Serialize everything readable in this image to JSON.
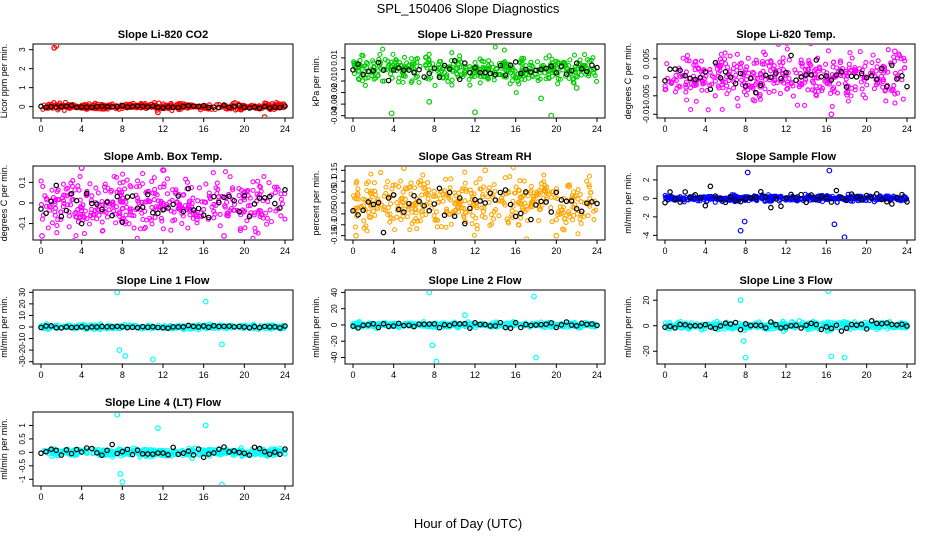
{
  "page": {
    "title": "SPL_150406  Slope Diagnostics",
    "xlabel": "Hour of Day (UTC)"
  },
  "colors": {
    "red": "#ff0000",
    "green": "#00cc00",
    "magenta": "#ff00ff",
    "orange": "#ffa500",
    "blue": "#0000ff",
    "cyan": "#00ffff",
    "black": "#000000"
  },
  "chart_data": [
    {
      "type": "scatter",
      "title": "Slope Li-820 CO2",
      "ylabel": "Licor ppm per min.",
      "xlim": [
        0,
        24
      ],
      "xticks": [
        0,
        4,
        8,
        12,
        16,
        20,
        24
      ],
      "ylim": [
        -0.6,
        3.3
      ],
      "yticks": [
        0,
        1,
        2,
        3
      ],
      "color": "red",
      "noise": 0.08,
      "outliers": [
        [
          1.3,
          3.1
        ],
        [
          1.5,
          3.2
        ],
        [
          22.0,
          -0.55
        ],
        [
          11.5,
          -0.3
        ]
      ],
      "black_sd": 0.04
    },
    {
      "type": "scatter",
      "title": "Slope Li-820 Pressure",
      "ylabel": "kPa per min.",
      "xlim": [
        0,
        24
      ],
      "xticks": [
        0,
        4,
        8,
        12,
        16,
        20,
        24
      ],
      "ylim": [
        -0.042,
        0.022
      ],
      "yticks": [
        -0.04,
        -0.03,
        -0.02,
        -0.01,
        0.0,
        0.01
      ],
      "color": "green",
      "noise": 0.006,
      "outliers": [
        [
          3.8,
          -0.038
        ],
        [
          7.5,
          -0.028
        ],
        [
          12,
          -0.037
        ],
        [
          18.5,
          -0.025
        ],
        [
          22,
          -0.016
        ],
        [
          19.5,
          -0.04
        ]
      ],
      "black_sd": 0.004
    },
    {
      "type": "scatter",
      "title": "Slope Li-820 Temp.",
      "ylabel": "degrees C per min.",
      "xlim": [
        0,
        24
      ],
      "xticks": [
        0,
        4,
        8,
        12,
        16,
        20,
        24
      ],
      "ylim": [
        -0.011,
        0.009
      ],
      "yticks": [
        -0.01,
        -0.005,
        0.0,
        0.005
      ],
      "color": "magenta",
      "noise": 0.0035,
      "outliers": [
        [
          16.5,
          -0.01
        ],
        [
          22.8,
          0.007
        ]
      ],
      "black_sd": 0.002
    },
    {
      "type": "scatter",
      "title": "Slope Amb. Box Temp.",
      "ylabel": "degrees C per min.",
      "xlim": [
        0,
        24
      ],
      "xticks": [
        0,
        4,
        8,
        12,
        16,
        20,
        24
      ],
      "ylim": [
        -0.18,
        0.18
      ],
      "yticks": [
        -0.1,
        0.0,
        0.1
      ],
      "color": "magenta",
      "noise": 0.065,
      "outliers": [
        [
          0.1,
          -0.16
        ],
        [
          4,
          0.17
        ],
        [
          12,
          0.16
        ],
        [
          18,
          -0.16
        ]
      ],
      "black_sd": 0.04
    },
    {
      "type": "scatter",
      "title": "Slope Gas Stream RH",
      "ylabel": "percent per min.",
      "xlim": [
        0,
        24
      ],
      "xticks": [
        0,
        4,
        8,
        12,
        16,
        20,
        24
      ],
      "ylim": [
        -0.17,
        0.17
      ],
      "yticks": [
        -0.15,
        -0.1,
        -0.05,
        0.0,
        0.05,
        0.1,
        0.15
      ],
      "color": "orange",
      "noise": 0.065,
      "outliers": [
        [
          0.3,
          -0.15
        ],
        [
          5,
          0.16
        ],
        [
          13,
          0.15
        ],
        [
          20,
          -0.15
        ]
      ],
      "black_sd": 0.04
    },
    {
      "type": "scatter",
      "title": "Slope Sample Flow",
      "ylabel": "ml/min per min.",
      "xlim": [
        0,
        24
      ],
      "xticks": [
        0,
        4,
        8,
        12,
        16,
        20,
        24
      ],
      "ylim": [
        -4.5,
        3.5
      ],
      "yticks": [
        -4,
        -2,
        0,
        2
      ],
      "color": "blue",
      "noise": 0.15,
      "outliers": [
        [
          7.5,
          -3.5
        ],
        [
          8.2,
          2.8
        ],
        [
          16.3,
          3.0
        ],
        [
          17.8,
          -4.2
        ],
        [
          7.9,
          -2.5
        ],
        [
          16.8,
          -2.8
        ]
      ],
      "black_sd": 0.5
    },
    {
      "type": "scatter",
      "title": "Slope Line 1 Flow",
      "ylabel": "ml/min per min.",
      "xlim": [
        0,
        24
      ],
      "xticks": [
        0,
        4,
        8,
        12,
        16,
        20,
        24
      ],
      "ylim": [
        -32,
        32
      ],
      "yticks": [
        -30,
        -20,
        -10,
        0,
        10,
        20,
        30
      ],
      "color": "cyan",
      "noise": 1.0,
      "outliers": [
        [
          7.5,
          30
        ],
        [
          7.7,
          -20
        ],
        [
          11,
          -28
        ],
        [
          16.2,
          22
        ],
        [
          8.3,
          -25
        ],
        [
          17.8,
          -15
        ]
      ],
      "black_sd": 0.5
    },
    {
      "type": "scatter",
      "title": "Slope Line 2 Flow",
      "ylabel": "ml/min per min.",
      "xlim": [
        0,
        24
      ],
      "xticks": [
        0,
        4,
        8,
        12,
        16,
        20,
        24
      ],
      "ylim": [
        -48,
        43
      ],
      "yticks": [
        -40,
        -20,
        0,
        20,
        40
      ],
      "color": "cyan",
      "noise": 1.5,
      "outliers": [
        [
          7.5,
          40
        ],
        [
          8.2,
          -45
        ],
        [
          17.8,
          35
        ],
        [
          18,
          -40
        ],
        [
          7.8,
          -25
        ],
        [
          11,
          12
        ]
      ],
      "black_sd": 2.0
    },
    {
      "type": "scatter",
      "title": "Slope Line 3 Flow",
      "ylabel": "ml/min per min.",
      "xlim": [
        0,
        24
      ],
      "xticks": [
        0,
        4,
        8,
        12,
        16,
        20,
        24
      ],
      "ylim": [
        -30,
        28
      ],
      "yticks": [
        -20,
        0,
        20
      ],
      "color": "cyan",
      "noise": 1.5,
      "outliers": [
        [
          7.5,
          20
        ],
        [
          8,
          -25
        ],
        [
          16.2,
          27
        ],
        [
          17.8,
          -25
        ],
        [
          16.5,
          -24
        ],
        [
          7.8,
          -12
        ]
      ],
      "black_sd": 2.0
    },
    {
      "type": "scatter",
      "title": "Slope Line 4 (LT) Flow",
      "ylabel": "ml/min per min.",
      "xlim": [
        0,
        24
      ],
      "xticks": [
        0,
        4,
        8,
        12,
        16,
        20,
        24
      ],
      "ylim": [
        -1.25,
        1.5
      ],
      "yticks": [
        -1.0,
        -0.5,
        0.0,
        0.5,
        1.0
      ],
      "color": "cyan",
      "noise": 0.07,
      "outliers": [
        [
          7.5,
          1.4
        ],
        [
          8,
          -1.1
        ],
        [
          16.2,
          1.0
        ],
        [
          17.8,
          -1.2
        ],
        [
          11.5,
          0.9
        ],
        [
          7.8,
          -0.8
        ]
      ],
      "black_sd": 0.1
    }
  ]
}
